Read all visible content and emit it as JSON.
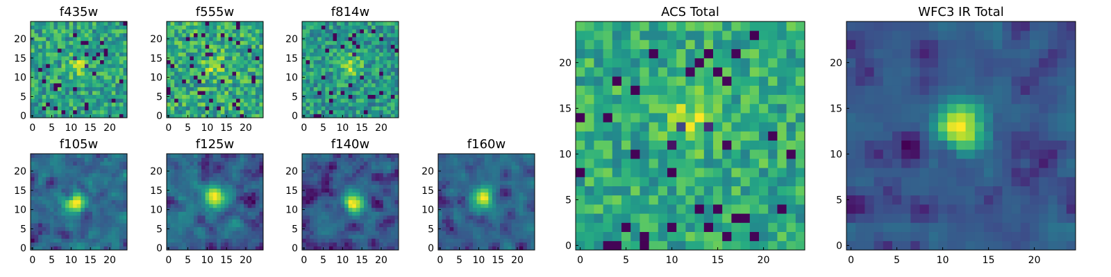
{
  "chart_data": [
    {
      "type": "heatmap",
      "title": "f435w",
      "grid_size": 25,
      "xlim": [
        -0.5,
        24.5
      ],
      "ylim": [
        -0.5,
        24.5
      ],
      "xticks": [
        0,
        5,
        10,
        15,
        20
      ],
      "yticks": [
        0,
        5,
        10,
        15,
        20
      ],
      "colormap": "viridis",
      "source_center": [
        12,
        13
      ],
      "source_strength": 0.35,
      "noise_level": 0.5,
      "smoothness": 0,
      "seed": 11
    },
    {
      "type": "heatmap",
      "title": "f555w",
      "grid_size": 25,
      "xlim": [
        -0.5,
        24.5
      ],
      "ylim": [
        -0.5,
        24.5
      ],
      "xticks": [
        0,
        5,
        10,
        15,
        20
      ],
      "yticks": [
        0,
        5,
        10,
        15,
        20
      ],
      "colormap": "viridis",
      "source_center": [
        12,
        13
      ],
      "source_strength": 0.3,
      "noise_level": 0.5,
      "smoothness": 0,
      "seed": 23
    },
    {
      "type": "heatmap",
      "title": "f814w",
      "grid_size": 25,
      "xlim": [
        -0.5,
        24.5
      ],
      "ylim": [
        -0.5,
        24.5
      ],
      "xticks": [
        0,
        5,
        10,
        15,
        20
      ],
      "yticks": [
        0,
        5,
        10,
        15,
        20
      ],
      "colormap": "viridis",
      "source_center": [
        12,
        13
      ],
      "source_strength": 0.45,
      "noise_level": 0.5,
      "smoothness": 0,
      "seed": 37
    },
    {
      "type": "heatmap",
      "title": "f105w",
      "grid_size": 25,
      "xlim": [
        -0.5,
        24.5
      ],
      "ylim": [
        -0.5,
        24.5
      ],
      "xticks": [
        0,
        5,
        10,
        15,
        20
      ],
      "yticks": [
        0,
        5,
        10,
        15,
        20
      ],
      "colormap": "viridis",
      "source_center": [
        11,
        12
      ],
      "source_strength": 0.6,
      "noise_level": 0.45,
      "smoothness": 1,
      "seed": 41
    },
    {
      "type": "heatmap",
      "title": "f125w",
      "grid_size": 25,
      "xlim": [
        -0.5,
        24.5
      ],
      "ylim": [
        -0.5,
        24.5
      ],
      "xticks": [
        0,
        5,
        10,
        15,
        20
      ],
      "yticks": [
        0,
        5,
        10,
        15,
        20
      ],
      "colormap": "viridis",
      "source_center": [
        12,
        13
      ],
      "source_strength": 0.6,
      "noise_level": 0.45,
      "smoothness": 1,
      "seed": 53
    },
    {
      "type": "heatmap",
      "title": "f140w",
      "grid_size": 25,
      "xlim": [
        -0.5,
        24.5
      ],
      "ylim": [
        -0.5,
        24.5
      ],
      "xticks": [
        0,
        5,
        10,
        15,
        20
      ],
      "yticks": [
        0,
        5,
        10,
        15,
        20
      ],
      "colormap": "viridis",
      "source_center": [
        13,
        12
      ],
      "source_strength": 0.65,
      "noise_level": 0.45,
      "smoothness": 1,
      "seed": 67
    },
    {
      "type": "heatmap",
      "title": "f160w",
      "grid_size": 25,
      "xlim": [
        -0.5,
        24.5
      ],
      "ylim": [
        -0.5,
        24.5
      ],
      "xticks": [
        0,
        5,
        10,
        15,
        20
      ],
      "yticks": [
        0,
        5,
        10,
        15,
        20
      ],
      "colormap": "viridis",
      "source_center": [
        11,
        13
      ],
      "source_strength": 0.7,
      "noise_level": 0.4,
      "smoothness": 1,
      "seed": 79
    },
    {
      "type": "heatmap",
      "title": "ACS Total",
      "grid_size": 25,
      "xlim": [
        -0.5,
        24.5
      ],
      "ylim": [
        -0.5,
        24.5
      ],
      "xticks": [
        0,
        5,
        10,
        15,
        20
      ],
      "yticks": [
        0,
        5,
        10,
        15,
        20
      ],
      "colormap": "viridis",
      "source_center": [
        12,
        14
      ],
      "source_strength": 0.3,
      "noise_level": 0.35,
      "smoothness": 0,
      "seed": 91
    },
    {
      "type": "heatmap",
      "title": "WFC3 IR Total",
      "grid_size": 25,
      "xlim": [
        -0.5,
        24.5
      ],
      "ylim": [
        -0.5,
        24.5
      ],
      "xticks": [
        0,
        5,
        10,
        15,
        20
      ],
      "yticks": [
        0,
        5,
        10,
        15,
        20
      ],
      "colormap": "viridis",
      "source_center": [
        12,
        13
      ],
      "source_strength": 0.75,
      "noise_level": 0.3,
      "smoothness": 1,
      "seed": 103
    }
  ]
}
